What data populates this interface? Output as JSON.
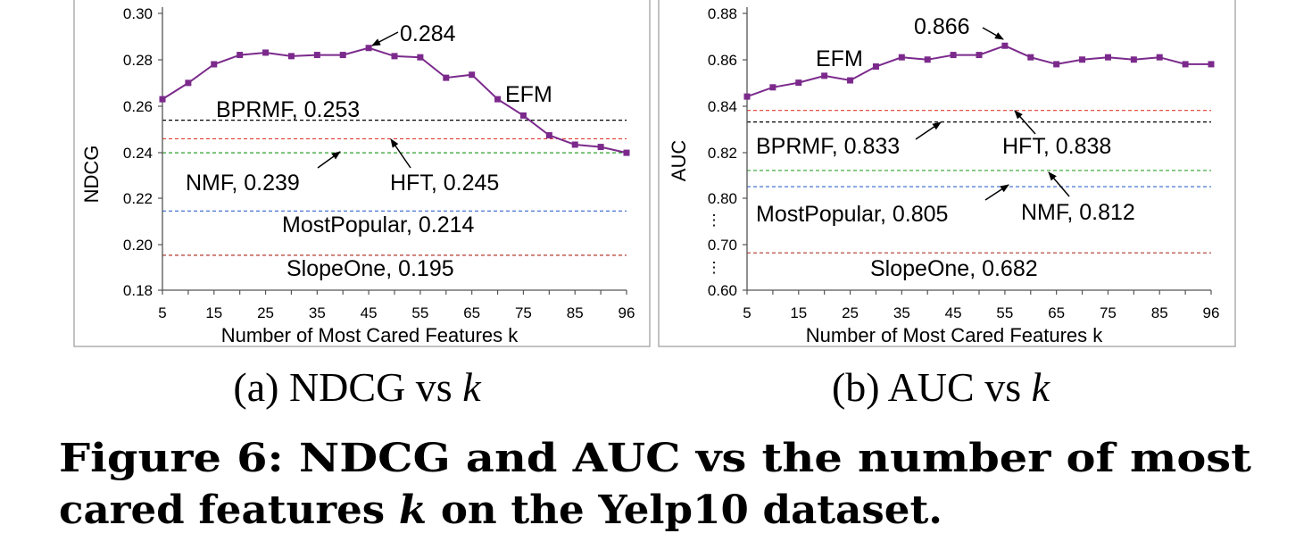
{
  "chart_data": [
    {
      "type": "line",
      "ylabel": "NDCG",
      "xlabel": "Number of Most Cared Features k",
      "x_ticks": [
        "5",
        "15",
        "25",
        "35",
        "45",
        "55",
        "65",
        "75",
        "85",
        "96"
      ],
      "y_ticks": [
        "0.30",
        "0.28",
        "0.26",
        "0.24",
        "0.22",
        "0.20",
        "0.18"
      ],
      "ylim": [
        0.18,
        0.3
      ],
      "series": [
        {
          "name": "EFM",
          "color": "#7b2a8c",
          "x": [
            5,
            10,
            15,
            20,
            25,
            30,
            35,
            40,
            45,
            50,
            55,
            60,
            65,
            70,
            75,
            80,
            85,
            90,
            96
          ],
          "values": [
            0.262,
            0.269,
            0.277,
            0.281,
            0.282,
            0.2805,
            0.281,
            0.281,
            0.284,
            0.2805,
            0.28,
            0.2712,
            0.2725,
            0.262,
            0.255,
            0.2465,
            0.2425,
            0.2415,
            0.239
          ]
        }
      ],
      "baselines": [
        {
          "name": "BPRMF",
          "value": 0.253,
          "color": "#000000"
        },
        {
          "name": "HFT",
          "value": 0.245,
          "color": "#e03c31"
        },
        {
          "name": "NMF",
          "value": 0.239,
          "color": "#2ca02c"
        },
        {
          "name": "MostPopular",
          "value": 0.214,
          "color": "#3366cc"
        },
        {
          "name": "SlopeOne",
          "value": 0.195,
          "color": "#b03a2e"
        }
      ],
      "annotations": {
        "peak": "0.284",
        "efm": "EFM",
        "bprmf": "BPRMF, 0.253",
        "nmf": "NMF, 0.239",
        "hft": "HFT, 0.245",
        "mostpopular": "MostPopular, 0.214",
        "slopeone": "SlopeOne, 0.195"
      },
      "subcaption": {
        "prefix": "(a) NDCG vs ",
        "var": "k"
      }
    },
    {
      "type": "line",
      "ylabel": "AUC",
      "xlabel": "Number of Most Cared Features k",
      "x_ticks": [
        "5",
        "15",
        "25",
        "35",
        "45",
        "55",
        "65",
        "75",
        "85",
        "96"
      ],
      "y_ticks": [
        "0.88",
        "0.86",
        "0.84",
        "0.82",
        "0.80",
        "0.70",
        "0.60"
      ],
      "y_axis_break": true,
      "series": [
        {
          "name": "EFM",
          "color": "#7b2a8c",
          "x": [
            5,
            10,
            15,
            20,
            25,
            30,
            35,
            40,
            45,
            50,
            55,
            60,
            65,
            70,
            75,
            80,
            85,
            90,
            96
          ],
          "values": [
            0.844,
            0.848,
            0.85,
            0.853,
            0.851,
            0.857,
            0.861,
            0.86,
            0.862,
            0.862,
            0.866,
            0.861,
            0.858,
            0.86,
            0.861,
            0.86,
            0.861,
            0.858,
            0.858
          ]
        }
      ],
      "baselines": [
        {
          "name": "HFT",
          "value": 0.838,
          "color": "#e03c31"
        },
        {
          "name": "BPRMF",
          "value": 0.833,
          "color": "#000000"
        },
        {
          "name": "NMF",
          "value": 0.812,
          "color": "#2ca02c"
        },
        {
          "name": "MostPopular",
          "value": 0.805,
          "color": "#3366cc"
        },
        {
          "name": "SlopeOne",
          "value": 0.682,
          "color": "#b03a2e"
        }
      ],
      "annotations": {
        "peak": "0.866",
        "efm": "EFM",
        "bprmf": "BPRMF, 0.833",
        "hft": "HFT, 0.838",
        "mostpopular": "MostPopular, 0.805",
        "nmf": "NMF, 0.812",
        "slopeone": "SlopeOne, 0.682"
      },
      "subcaption": {
        "prefix": "(b) AUC vs ",
        "var": "k"
      }
    }
  ],
  "caption": {
    "line1": "Figure 6: NDCG and AUC vs the number of most",
    "line2_pre": "cared features ",
    "line2_var": "k",
    "line2_post": " on the Yelp10 dataset."
  }
}
